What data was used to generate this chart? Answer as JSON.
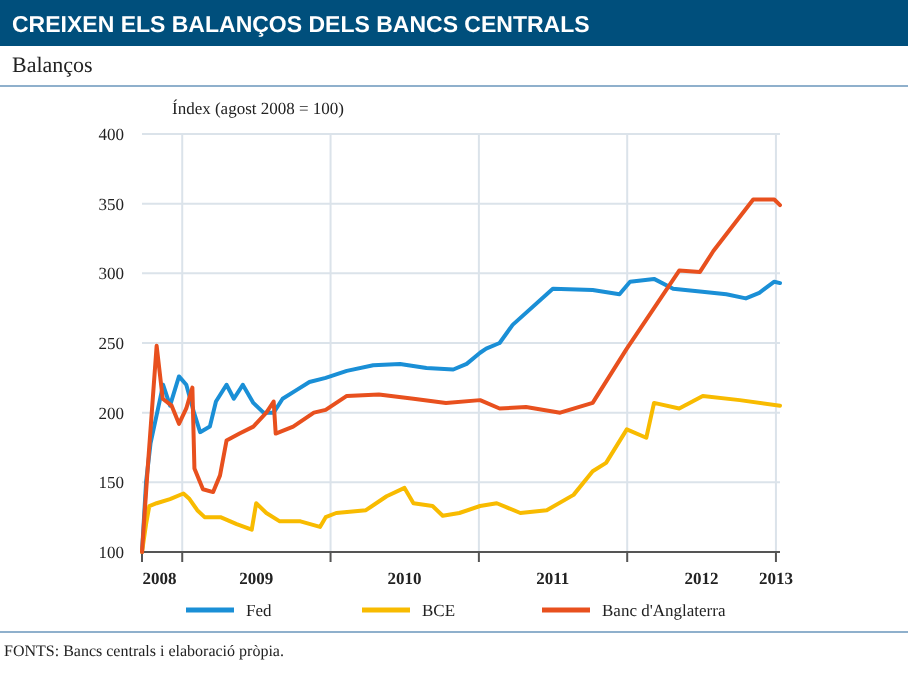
{
  "chart_data": {
    "type": "line",
    "title": "CREIXEN ELS BALANÇOS DELS BANCS CENTRALS",
    "subtitle": "Balanços",
    "ylabel": "Índex (agost 2008 = 100)",
    "annotations": [
      "FONTS: Bancs centrals i elaboració pròpia."
    ],
    "xlim": [
      "2008-09-24",
      "2013-01-11"
    ],
    "ylim": [
      100,
      400
    ],
    "yticks": [
      100,
      150,
      200,
      250,
      300,
      350,
      400
    ],
    "xticks": [
      {
        "value": "2008-11-06",
        "label": "2008"
      },
      {
        "value": "2009-01-01",
        "label": null
      },
      {
        "value": "2009-07-02",
        "label": "2009"
      },
      {
        "value": "2010-01-01",
        "label": null
      },
      {
        "value": "2010-07-02",
        "label": "2010"
      },
      {
        "value": "2011-01-01",
        "label": null
      },
      {
        "value": "2011-07-02",
        "label": "2011"
      },
      {
        "value": "2012-01-01",
        "label": null
      },
      {
        "value": "2012-07-02",
        "label": "2012"
      },
      {
        "value": "2013-01-01",
        "label": null
      },
      {
        "value": "2013-01-01",
        "label": "2013"
      }
    ],
    "grid": true,
    "legend": "bottom",
    "marker": "none",
    "line_style": "solid",
    "series": [
      {
        "name": "Fed",
        "color": "#1a8fd6",
        "x": [
          "2008-09-24",
          "2008-10-04",
          "2008-10-15",
          "2008-11-15",
          "2008-12-02",
          "2008-12-24",
          "2009-01-11",
          "2009-01-30",
          "2009-02-14",
          "2009-03-10",
          "2009-03-25",
          "2009-04-20",
          "2009-05-08",
          "2009-05-30",
          "2009-06-25",
          "2009-07-20",
          "2009-08-14",
          "2009-09-05",
          "2009-10-08",
          "2009-11-10",
          "2009-12-20",
          "2010-02-10",
          "2010-04-16",
          "2010-06-21",
          "2010-08-25",
          "2010-10-30",
          "2010-12-02",
          "2011-01-04",
          "2011-01-19",
          "2011-02-21",
          "2011-03-25",
          "2011-07-02",
          "2011-10-08",
          "2011-12-13",
          "2012-01-08",
          "2012-03-07",
          "2012-04-23",
          "2012-06-28",
          "2012-09-01",
          "2012-10-19",
          "2012-11-21",
          "2012-12-28",
          "2013-01-11"
        ],
        "values": [
          100,
          150,
          178,
          220,
          205,
          226,
          220,
          200,
          186,
          190,
          208,
          220,
          210,
          220,
          207,
          200,
          200,
          210,
          216,
          222,
          225,
          230,
          234,
          235,
          232,
          231,
          235,
          243,
          246,
          250,
          263,
          289,
          288,
          285,
          294,
          296,
          289,
          287,
          285,
          282,
          286,
          294,
          293
        ]
      },
      {
        "name": "BCE",
        "color": "#f8bb00",
        "x": [
          "2008-09-24",
          "2008-10-04",
          "2008-10-12",
          "2008-10-30",
          "2008-12-02",
          "2009-01-04",
          "2009-01-19",
          "2009-02-07",
          "2009-02-25",
          "2009-04-05",
          "2009-05-15",
          "2009-06-21",
          "2009-07-02",
          "2009-07-27",
          "2009-08-29",
          "2009-10-19",
          "2009-12-06",
          "2009-12-20",
          "2010-01-15",
          "2010-03-29",
          "2010-05-19",
          "2010-07-02",
          "2010-07-24",
          "2010-09-09",
          "2010-10-04",
          "2010-11-14",
          "2011-01-04",
          "2011-02-14",
          "2011-04-13",
          "2011-06-17",
          "2011-08-22",
          "2011-10-08",
          "2011-11-10",
          "2011-12-31",
          "2012-02-17",
          "2012-03-07",
          "2012-05-08",
          "2012-07-05",
          "2012-10-04",
          "2013-01-11"
        ],
        "values": [
          100,
          120,
          133,
          135,
          138,
          142,
          138,
          130,
          125,
          125,
          120,
          116,
          135,
          128,
          122,
          122,
          118,
          125,
          128,
          130,
          140,
          146,
          135,
          133,
          126,
          128,
          133,
          135,
          128,
          130,
          141,
          158,
          164,
          188,
          182,
          207,
          203,
          212,
          209,
          205
        ]
      },
      {
        "name": "Banc d'Anglaterra",
        "color": "#e8501e",
        "x": [
          "2008-09-24",
          "2008-10-08",
          "2008-10-30",
          "2008-11-14",
          "2008-12-06",
          "2008-12-24",
          "2009-01-11",
          "2009-01-26",
          "2009-01-31",
          "2009-02-21",
          "2009-03-18",
          "2009-04-04",
          "2009-04-20",
          "2009-05-22",
          "2009-06-25",
          "2009-07-27",
          "2009-08-14",
          "2009-08-19",
          "2009-10-01",
          "2009-11-21",
          "2009-12-20",
          "2010-02-10",
          "2010-04-30",
          "2010-07-24",
          "2010-10-12",
          "2011-01-04",
          "2011-02-21",
          "2011-04-27",
          "2011-07-20",
          "2011-10-08",
          "2011-12-31",
          "2012-03-07",
          "2012-05-08",
          "2012-06-28",
          "2012-07-31",
          "2012-11-06",
          "2012-12-28",
          "2013-01-11"
        ],
        "values": [
          100,
          160,
          248,
          210,
          205,
          192,
          203,
          218,
          160,
          145,
          143,
          155,
          180,
          185,
          190,
          200,
          208,
          185,
          190,
          200,
          202,
          212,
          213,
          210,
          207,
          209,
          203,
          204,
          200,
          207,
          246,
          275,
          302,
          301,
          316,
          353,
          353,
          349
        ]
      }
    ]
  }
}
